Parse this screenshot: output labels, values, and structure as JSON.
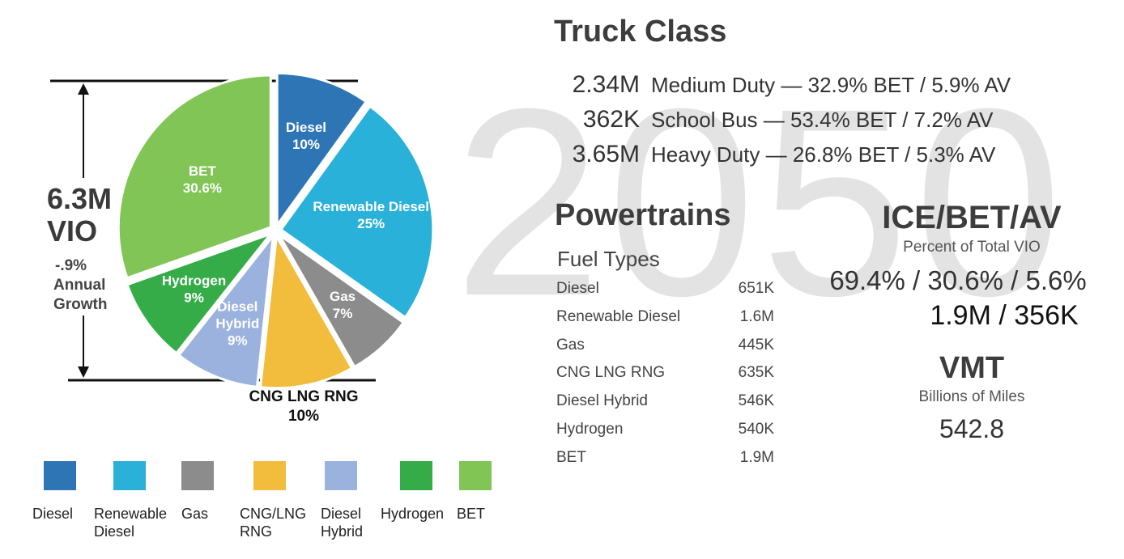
{
  "watermark": "2050",
  "vio": {
    "value": "6.3M",
    "label": "VIO",
    "growth": "-.9%",
    "growth_l1": "Annual",
    "growth_l2": "Growth"
  },
  "chart_data": {
    "type": "pie",
    "slices": [
      {
        "name": "Diesel",
        "label": "Diesel",
        "pct_text": "10%",
        "value": 10,
        "color": "#2e75b6"
      },
      {
        "name": "Renewable Diesel",
        "label": "Renewable Diesel",
        "pct_text": "25%",
        "value": 25,
        "color": "#29b1da"
      },
      {
        "name": "Gas",
        "label": "Gas",
        "pct_text": "7%",
        "value": 7,
        "color": "#8c8c8c"
      },
      {
        "name": "CNG LNG RNG",
        "label": "CNG LNG RNG",
        "pct_text": "10%",
        "value": 10,
        "color": "#f2bd3c"
      },
      {
        "name": "Diesel Hybrid",
        "label": "Diesel Hybrid",
        "pct_text": "9%",
        "value": 9,
        "color": "#9cb2de"
      },
      {
        "name": "Hydrogen",
        "label": "Hydrogen",
        "pct_text": "9%",
        "value": 9,
        "color": "#35ac48"
      },
      {
        "name": "BET",
        "label": "BET",
        "pct_text": "30.6%",
        "value": 30.6,
        "color": "#80c555"
      }
    ],
    "legend": [
      {
        "l1": "Diesel",
        "l2": "",
        "color": "#2e75b6"
      },
      {
        "l1": "Renewable",
        "l2": "Diesel",
        "color": "#29b1da"
      },
      {
        "l1": "Gas",
        "l2": "",
        "color": "#8c8c8c"
      },
      {
        "l1": "CNG/LNG",
        "l2": "RNG",
        "color": "#f2bd3c"
      },
      {
        "l1": "Diesel",
        "l2": "Hybrid",
        "color": "#9cb2de"
      },
      {
        "l1": "Hydrogen",
        "l2": "",
        "color": "#35ac48"
      },
      {
        "l1": "BET",
        "l2": "",
        "color": "#80c555"
      }
    ],
    "legend_position": "bottom"
  },
  "truck_class": {
    "title": "Truck Class",
    "rows": [
      {
        "count": "2.34M",
        "desc": "Medium Duty — 32.9% BET / 5.9% AV"
      },
      {
        "count": "362K",
        "desc": "School Bus — 53.4% BET / 7.2% AV"
      },
      {
        "count": "3.65M",
        "desc": "Heavy Duty — 26.8% BET / 5.3% AV"
      }
    ]
  },
  "powertrains": {
    "title": "Powertrains",
    "subtitle": "Fuel Types",
    "rows": [
      {
        "name": "Diesel",
        "value": "651K"
      },
      {
        "name": "Renewable Diesel",
        "value": "1.6M"
      },
      {
        "name": "Gas",
        "value": "445K"
      },
      {
        "name": "CNG LNG RNG",
        "value": "635K"
      },
      {
        "name": "Diesel Hybrid",
        "value": "546K"
      },
      {
        "name": "Hydrogen",
        "value": "540K"
      },
      {
        "name": "BET",
        "value": "1.9M"
      }
    ]
  },
  "ice_bet_av": {
    "title": "ICE/BET/AV",
    "subtitle": "Percent of Total VIO",
    "percents": "69.4% / 30.6% / 5.6%",
    "counts": "1.9M / 356K"
  },
  "vmt": {
    "title": "VMT",
    "subtitle": "Billions of Miles",
    "value": "542.8"
  }
}
